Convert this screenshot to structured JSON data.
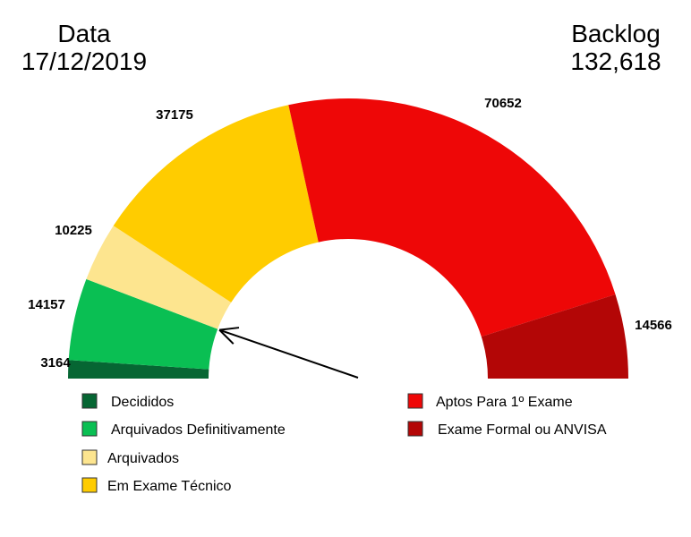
{
  "header": {
    "date_label": "Data",
    "date_value": "17/12/2019",
    "backlog_label": "Backlog",
    "backlog_value": "132,618"
  },
  "chart_data": {
    "type": "pie",
    "shape": "half-donut",
    "categories": [
      "Decididos",
      "Arquivados Definitivamente",
      "Arquivados",
      "Em Exame Técnico",
      "Aptos Para 1º Exame",
      "Exame Formal ou ANVISA"
    ],
    "values": [
      3164,
      14157,
      10225,
      37175,
      70652,
      14566
    ],
    "data_labels": [
      "3164",
      "14157",
      "10225",
      "37175",
      "70652",
      "14566"
    ],
    "colors": [
      "#066633",
      "#0abf53",
      "#fde58f",
      "#ffcc00",
      "#ee0707",
      "#b30606"
    ],
    "legend_placement": "bottom",
    "annotation": "arrow pointing from the center to the boundary between Arquivados Definitivamente and Arquivados"
  }
}
